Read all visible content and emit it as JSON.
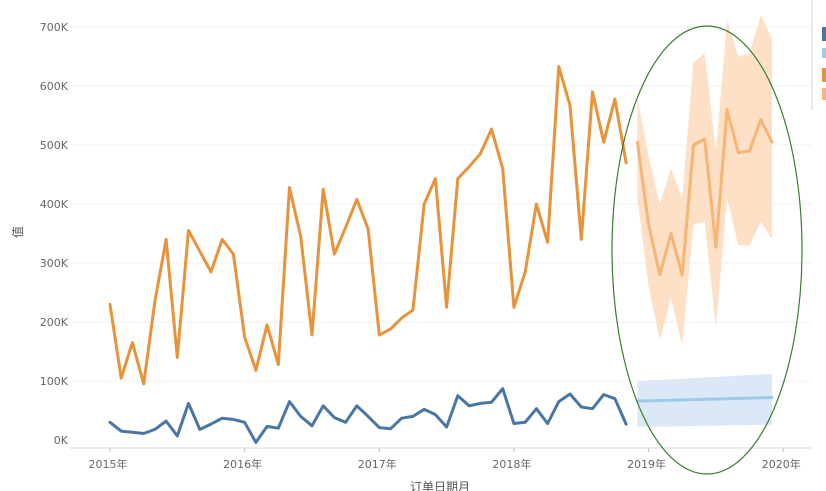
{
  "chart_data": {
    "type": "line",
    "xlabel": "订单日期月",
    "ylabel": "值",
    "ylim": [
      0,
      740000
    ],
    "y_ticks": [
      "0K",
      "100K",
      "200K",
      "300K",
      "400K",
      "500K",
      "600K",
      "700K"
    ],
    "x_ticks": [
      "2015年",
      "2016年",
      "2017年",
      "2018年",
      "2019年",
      "2020年"
    ],
    "grid": "horizontal",
    "legend_position": "right (partially visible)",
    "colors": {
      "orange": "#e8923a",
      "orange_forecast": "#f6b574",
      "orange_band": "#fde0c6",
      "blue": "#4a76a3",
      "blue_forecast": "#9ecae9",
      "blue_band": "#dbe9f6",
      "ellipse": "#3a7d2e",
      "grid": "#f0f0f0"
    },
    "series": [
      {
        "color": "orange",
        "x": [
          "2015-01",
          "2015-02",
          "2015-03",
          "2015-04",
          "2015-05",
          "2015-06",
          "2015-07",
          "2015-08",
          "2015-09",
          "2015-10",
          "2015-11",
          "2015-12",
          "2016-01",
          "2016-02",
          "2016-03",
          "2016-04",
          "2016-05",
          "2016-06",
          "2016-07",
          "2016-08",
          "2016-09",
          "2016-10",
          "2016-11",
          "2016-12",
          "2017-01",
          "2017-02",
          "2017-03",
          "2017-04",
          "2017-05",
          "2017-06",
          "2017-07",
          "2017-08",
          "2017-09",
          "2017-10",
          "2017-11",
          "2017-12",
          "2018-01",
          "2018-02",
          "2018-03",
          "2018-04",
          "2018-05",
          "2018-06",
          "2018-07",
          "2018-08",
          "2018-09",
          "2018-10",
          "2018-11",
          "2018-12"
        ],
        "values": [
          230000,
          105000,
          165000,
          95000,
          235000,
          340000,
          140000,
          355000,
          320000,
          285000,
          340000,
          315000,
          175000,
          118000,
          195000,
          128000,
          428000,
          345000,
          178000,
          425000,
          315000,
          360000,
          408000,
          358000,
          178000,
          188000,
          207000,
          220000,
          400000,
          443000,
          225000,
          443000,
          463000,
          485000,
          527000,
          460000,
          225000,
          285000,
          400000,
          335000,
          633000,
          567000,
          340000,
          590000,
          505000,
          578000,
          470000,
          null
        ]
      },
      {
        "color": "blue",
        "x": [
          "2015-01",
          "2015-02",
          "2015-03",
          "2015-04",
          "2015-05",
          "2015-06",
          "2015-07",
          "2015-08",
          "2015-09",
          "2015-10",
          "2015-11",
          "2015-12",
          "2016-01",
          "2016-02",
          "2016-03",
          "2016-04",
          "2016-05",
          "2016-06",
          "2016-07",
          "2016-08",
          "2016-09",
          "2016-10",
          "2016-11",
          "2016-12",
          "2017-01",
          "2017-02",
          "2017-03",
          "2017-04",
          "2017-05",
          "2017-06",
          "2017-07",
          "2017-08",
          "2017-09",
          "2017-10",
          "2017-11",
          "2017-12",
          "2018-01",
          "2018-02",
          "2018-03",
          "2018-04",
          "2018-05",
          "2018-06",
          "2018-07",
          "2018-08",
          "2018-09",
          "2018-10",
          "2018-11",
          "2018-12"
        ],
        "values": [
          30000,
          15000,
          13000,
          11000,
          18000,
          32000,
          7000,
          62000,
          18000,
          27000,
          37000,
          35000,
          30000,
          -4000,
          23000,
          20000,
          65000,
          40000,
          24000,
          58000,
          38000,
          30000,
          58000,
          40000,
          21000,
          19000,
          37000,
          40000,
          52000,
          43000,
          22000,
          75000,
          58000,
          62000,
          64000,
          87000,
          28000,
          30000,
          53000,
          28000,
          65000,
          78000,
          56000,
          53000,
          77000,
          70000,
          27000,
          null
        ]
      },
      {
        "color": "orange_forecast",
        "x": [
          "2018-12",
          "2019-01",
          "2019-02",
          "2019-03",
          "2019-04",
          "2019-05",
          "2019-06",
          "2019-07",
          "2019-08",
          "2019-09",
          "2019-10",
          "2019-11",
          "2019-12"
        ],
        "values": [
          505000,
          365000,
          280000,
          350000,
          280000,
          500000,
          510000,
          327000,
          560000,
          487000,
          490000,
          543000,
          505000
        ],
        "upper": [
          580000,
          480000,
          400000,
          460000,
          410000,
          640000,
          655000,
          490000,
          710000,
          650000,
          655000,
          720000,
          680000
        ],
        "lower": [
          410000,
          260000,
          170000,
          240000,
          160000,
          365000,
          370000,
          190000,
          410000,
          330000,
          330000,
          370000,
          340000
        ]
      },
      {
        "color": "blue_forecast",
        "x": [
          "2018-12",
          "2019-12"
        ],
        "values": [
          66000,
          72000
        ],
        "upper": [
          100000,
          112000
        ],
        "lower": [
          22000,
          26000
        ]
      }
    ]
  }
}
